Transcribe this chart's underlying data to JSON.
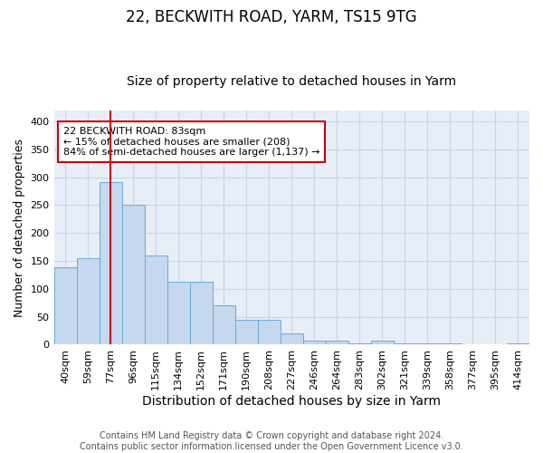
{
  "title": "22, BECKWITH ROAD, YARM, TS15 9TG",
  "subtitle": "Size of property relative to detached houses in Yarm",
  "xlabel": "Distribution of detached houses by size in Yarm",
  "ylabel": "Number of detached properties",
  "bar_labels": [
    "40sqm",
    "59sqm",
    "77sqm",
    "96sqm",
    "115sqm",
    "134sqm",
    "152sqm",
    "171sqm",
    "190sqm",
    "208sqm",
    "227sqm",
    "246sqm",
    "264sqm",
    "283sqm",
    "302sqm",
    "321sqm",
    "339sqm",
    "358sqm",
    "377sqm",
    "395sqm",
    "414sqm"
  ],
  "bar_heights": [
    138,
    155,
    292,
    250,
    160,
    113,
    113,
    70,
    45,
    45,
    20,
    8,
    8,
    3,
    8,
    3,
    3,
    2,
    1,
    1,
    2
  ],
  "bar_color": "#c5d8ef",
  "bar_edge_color": "#6aaad4",
  "vline_x": 2,
  "vline_color": "#cc0000",
  "annotation_text": "22 BECKWITH ROAD: 83sqm\n← 15% of detached houses are smaller (208)\n84% of semi-detached houses are larger (1,137) →",
  "annotation_box_color": "#ffffff",
  "annotation_box_edge": "#cc0000",
  "ylim": [
    0,
    420
  ],
  "yticks": [
    0,
    50,
    100,
    150,
    200,
    250,
    300,
    350,
    400
  ],
  "grid_color": "#c8d4e8",
  "background_color": "#e8eef8",
  "footnote": "Contains HM Land Registry data © Crown copyright and database right 2024.\nContains public sector information licensed under the Open Government Licence v3.0.",
  "title_fontsize": 12,
  "subtitle_fontsize": 10,
  "ylabel_fontsize": 9,
  "xlabel_fontsize": 10,
  "tick_fontsize": 8,
  "footnote_fontsize": 7,
  "annot_fontsize": 8
}
